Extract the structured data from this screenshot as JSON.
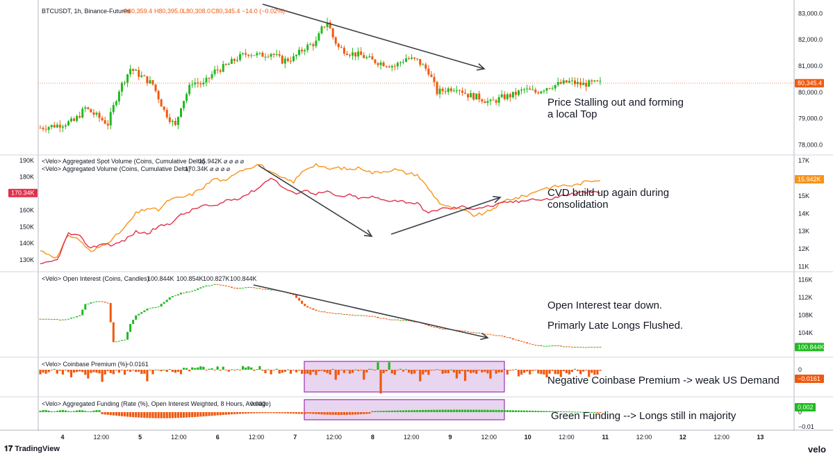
{
  "header": {
    "symbol": "BTCUSDT, 1h, Binance-Futures",
    "ohlc": {
      "o": "O80,359.4",
      "h": "H80,395.0",
      "l": "L80,308.0",
      "c": "C80,345.4",
      "chg": "−14.0 (−0.02%)"
    }
  },
  "branding": {
    "left": "TradingView",
    "right": "velo"
  },
  "colors": {
    "up": "#1fba1f",
    "down": "#f0580e",
    "spot_cvd": "#f7931a",
    "agg_cvd": "#e0304a",
    "highlight_fill": "#e8d5ef",
    "highlight_stroke": "#9b2fb5"
  },
  "price_line": {
    "value": "80,345.4"
  },
  "annotations": {
    "price": [
      "Price Stalling out and forming",
      "a local Top"
    ],
    "cvd": [
      "CVD build up again during",
      "consolidation"
    ],
    "oi_1": "Open Interest tear down.",
    "oi_2": "Primarly Late Longs Flushed.",
    "premium": "Negative Coinbase Premium -> weak US Demand",
    "funding": "Green Funding --> Longs still in majority"
  },
  "chart_data": [
    {
      "type": "candlestick",
      "title": "BTCUSDT, 1h, Binance-Futures",
      "x_ticks": [
        "4",
        "12:00",
        "5",
        "12:00",
        "6",
        "12:00",
        "7",
        "12:00",
        "8",
        "12:00",
        "9",
        "12:00",
        "10",
        "12:00",
        "11",
        "12:00",
        "12",
        "12:00",
        "13"
      ],
      "y_ticks": [
        "83,000.0",
        "82,000.0",
        "81,000.0",
        "80,000.0",
        "79,000.0",
        "78,000.0"
      ],
      "ylim": [
        77800,
        83300
      ],
      "last_price": "80,345.4",
      "close_path": [
        [
          0,
          78650
        ],
        [
          6,
          78750
        ],
        [
          12,
          78900
        ],
        [
          16,
          79400
        ],
        [
          20,
          79100
        ],
        [
          24,
          78800
        ],
        [
          28,
          80100
        ],
        [
          32,
          80900
        ],
        [
          36,
          80600
        ],
        [
          40,
          80300
        ],
        [
          44,
          79300
        ],
        [
          48,
          78700
        ],
        [
          50,
          79500
        ],
        [
          54,
          80400
        ],
        [
          58,
          80300
        ],
        [
          62,
          80800
        ],
        [
          66,
          81000
        ],
        [
          70,
          81300
        ],
        [
          74,
          81500
        ],
        [
          78,
          81400
        ],
        [
          82,
          81500
        ],
        [
          86,
          81200
        ],
        [
          90,
          81300
        ],
        [
          94,
          81700
        ],
        [
          98,
          81900
        ],
        [
          100,
          82400
        ],
        [
          102,
          82700
        ],
        [
          104,
          82100
        ],
        [
          106,
          81700
        ],
        [
          110,
          81500
        ],
        [
          114,
          81400
        ],
        [
          118,
          81200
        ],
        [
          122,
          81100
        ],
        [
          126,
          81000
        ],
        [
          130,
          81300
        ],
        [
          134,
          81200
        ],
        [
          138,
          80800
        ],
        [
          141,
          80000
        ],
        [
          144,
          80100
        ],
        [
          148,
          80200
        ],
        [
          152,
          79900
        ],
        [
          156,
          79800
        ],
        [
          160,
          79600
        ],
        [
          164,
          79800
        ],
        [
          168,
          79900
        ],
        [
          172,
          80100
        ],
        [
          176,
          80000
        ],
        [
          180,
          80200
        ],
        [
          184,
          80300
        ],
        [
          188,
          80400
        ],
        [
          192,
          80300
        ],
        [
          196,
          80340
        ],
        [
          199,
          80345
        ]
      ]
    },
    {
      "type": "line",
      "title": "<Velo> Aggregated Spot Volume (Coins, Cumulative Delta)",
      "series": [
        {
          "name": "<Velo> Aggregated Spot Volume (Coins, Cumulative Delta)",
          "last": "15.942K",
          "axis": "right",
          "path": [
            [
              0,
              11.9
            ],
            [
              6,
              11.5
            ],
            [
              10,
              12.8
            ],
            [
              14,
              12.5
            ],
            [
              18,
              11.8
            ],
            [
              22,
              12.2
            ],
            [
              26,
              12.6
            ],
            [
              30,
              13.2
            ],
            [
              34,
              14.0
            ],
            [
              38,
              14.3
            ],
            [
              42,
              14.2
            ],
            [
              46,
              14.8
            ],
            [
              50,
              14.9
            ],
            [
              54,
              15.1
            ],
            [
              58,
              15.5
            ],
            [
              62,
              16.0
            ],
            [
              66,
              15.8
            ],
            [
              70,
              16.4
            ],
            [
              74,
              16.6
            ],
            [
              78,
              16.8
            ],
            [
              82,
              16.3
            ],
            [
              86,
              16.0
            ],
            [
              90,
              15.8
            ],
            [
              94,
              16.5
            ],
            [
              98,
              16.8
            ],
            [
              102,
              16.5
            ],
            [
              106,
              16.6
            ],
            [
              110,
              16.5
            ],
            [
              114,
              16.6
            ],
            [
              118,
              16.3
            ],
            [
              122,
              16.4
            ],
            [
              126,
              16.5
            ],
            [
              130,
              16.3
            ],
            [
              134,
              16.2
            ],
            [
              138,
              15.4
            ],
            [
              142,
              14.6
            ],
            [
              146,
              14.3
            ],
            [
              150,
              14.2
            ],
            [
              154,
              13.9
            ],
            [
              158,
              14.0
            ],
            [
              162,
              14.4
            ],
            [
              166,
              14.8
            ],
            [
              170,
              14.9
            ],
            [
              174,
              15.1
            ],
            [
              178,
              15.4
            ],
            [
              182,
              15.5
            ],
            [
              186,
              15.6
            ],
            [
              190,
              15.6
            ],
            [
              194,
              15.8
            ],
            [
              199,
              15.95
            ]
          ]
        },
        {
          "name": "<Velo> Aggregated Volume (Coins, Cumulative Delta)",
          "last": "170.34K",
          "axis": "left",
          "path": [
            [
              0,
              127
            ],
            [
              6,
              130
            ],
            [
              10,
              146
            ],
            [
              14,
              144
            ],
            [
              18,
              137
            ],
            [
              22,
              140
            ],
            [
              26,
              139
            ],
            [
              30,
              142
            ],
            [
              34,
              147
            ],
            [
              38,
              146
            ],
            [
              42,
              150
            ],
            [
              46,
              152
            ],
            [
              50,
              157
            ],
            [
              54,
              160
            ],
            [
              58,
              163
            ],
            [
              62,
              162
            ],
            [
              66,
              166
            ],
            [
              70,
              167
            ],
            [
              74,
              170
            ],
            [
              78,
              174
            ],
            [
              82,
              180
            ],
            [
              86,
              174
            ],
            [
              90,
              170
            ],
            [
              94,
              172
            ],
            [
              98,
              170
            ],
            [
              102,
              171
            ],
            [
              106,
              168
            ],
            [
              110,
              169
            ],
            [
              114,
              167
            ],
            [
              118,
              168
            ],
            [
              122,
              166
            ],
            [
              126,
              166
            ],
            [
              130,
              165
            ],
            [
              134,
              164
            ],
            [
              138,
              158
            ],
            [
              142,
              161
            ],
            [
              146,
              161
            ],
            [
              150,
              162
            ],
            [
              154,
              161
            ],
            [
              158,
              162
            ],
            [
              162,
              163
            ],
            [
              166,
              165
            ],
            [
              170,
              165
            ],
            [
              174,
              167
            ],
            [
              178,
              166
            ],
            [
              182,
              167
            ],
            [
              186,
              169
            ],
            [
              190,
              170
            ],
            [
              194,
              171
            ],
            [
              199,
              170.3
            ]
          ]
        }
      ],
      "y_ticks_left": [
        "190K",
        "180K",
        "170K",
        "160K",
        "150K",
        "140K",
        "130K"
      ],
      "y_ticks_right": [
        "17K",
        "16K",
        "15K",
        "14K",
        "13K",
        "12K",
        "11K"
      ],
      "ylim_left": [
        125,
        192
      ],
      "ylim_right": [
        10.9,
        17.2
      ]
    },
    {
      "type": "candlestick",
      "title": "<Velo> Open Interest (Coins, Candles)",
      "values_label": [
        "100.844K",
        "100.854K",
        "100.827K",
        "100.844K"
      ],
      "y_ticks": [
        "116K",
        "112K",
        "108K",
        "104K"
      ],
      "ylim": [
        99.5,
        117
      ],
      "close_path": [
        [
          0,
          107.2
        ],
        [
          8,
          107.0
        ],
        [
          12,
          107.5
        ],
        [
          14,
          108.0
        ],
        [
          16,
          110.5
        ],
        [
          20,
          111.2
        ],
        [
          24,
          110.8
        ],
        [
          26,
          102.0
        ],
        [
          30,
          102.5
        ],
        [
          32,
          106.0
        ],
        [
          34,
          108.0
        ],
        [
          38,
          109.5
        ],
        [
          42,
          110.0
        ],
        [
          46,
          112.0
        ],
        [
          50,
          113.0
        ],
        [
          54,
          113.5
        ],
        [
          58,
          114.5
        ],
        [
          62,
          115.0
        ],
        [
          66,
          114.5
        ],
        [
          70,
          114.0
        ],
        [
          74,
          114.3
        ],
        [
          78,
          114.0
        ],
        [
          82,
          113.7
        ],
        [
          86,
          113.4
        ],
        [
          90,
          112.5
        ],
        [
          94,
          110.0
        ],
        [
          98,
          109.0
        ],
        [
          102,
          108.6
        ],
        [
          106,
          108.3
        ],
        [
          110,
          108.1
        ],
        [
          114,
          108.0
        ],
        [
          118,
          107.7
        ],
        [
          122,
          107.2
        ],
        [
          126,
          107.0
        ],
        [
          130,
          106.8
        ],
        [
          134,
          106.5
        ],
        [
          138,
          105.6
        ],
        [
          142,
          105.0
        ],
        [
          146,
          104.8
        ],
        [
          150,
          104.5
        ],
        [
          154,
          104.1
        ],
        [
          158,
          103.8
        ],
        [
          162,
          103.5
        ],
        [
          166,
          103.0
        ],
        [
          170,
          102.2
        ],
        [
          174,
          101.5
        ],
        [
          178,
          101.1
        ],
        [
          182,
          101.2
        ],
        [
          186,
          101.0
        ],
        [
          190,
          100.9
        ],
        [
          194,
          100.8
        ],
        [
          199,
          100.844
        ]
      ]
    },
    {
      "type": "bar",
      "title": "<Velo> Coinbase Premium (%)",
      "last": "−0.0161",
      "y_ticks": [
        "0"
      ],
      "value_range": [
        -0.19,
        0.08
      ]
    },
    {
      "type": "bar",
      "title": "<Velo> Aggregated Funding (Rate (%), Open Interest Weighted, 8 Hours, Average)",
      "last": "0.002",
      "y_ticks": [
        "0",
        "−0.01"
      ],
      "ylim": [
        -0.012,
        0.006
      ]
    }
  ]
}
